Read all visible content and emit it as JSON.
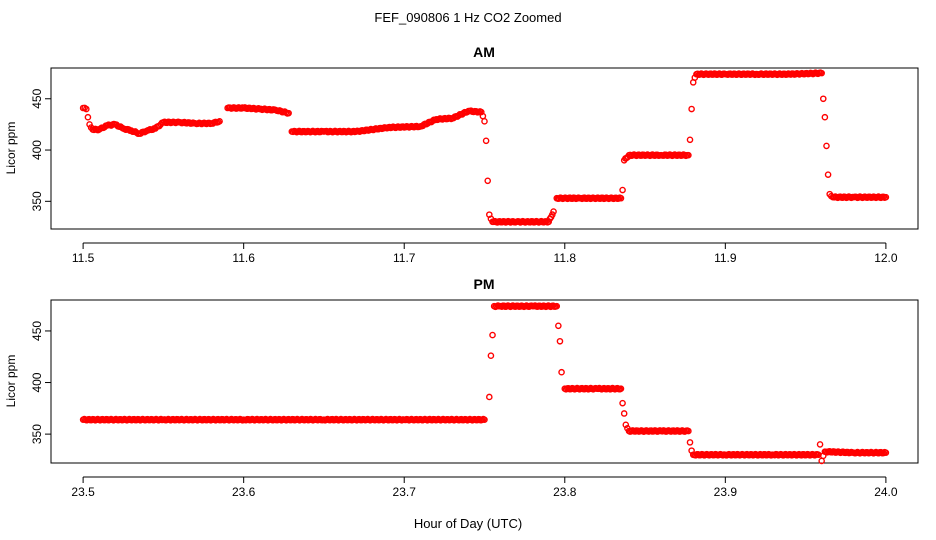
{
  "figure": {
    "title": "FEF_090806  1 Hz CO2 Zoomed",
    "xlabel": "Hour of Day (UTC)"
  },
  "colors": {
    "points": "#ff0000",
    "axes": "#000000",
    "background": "#ffffff"
  },
  "chart_data": [
    {
      "type": "scatter",
      "title": "AM",
      "ylabel": "Licor ppm",
      "xlim": [
        11.48,
        12.02
      ],
      "ylim": [
        323,
        480
      ],
      "xticks": [
        "11.5",
        "11.6",
        "11.7",
        "11.8",
        "11.9",
        "12.0"
      ],
      "xtick_values": [
        11.5,
        11.6,
        11.7,
        11.8,
        11.9,
        12.0
      ],
      "yticks": [
        "350",
        "400",
        "450"
      ],
      "ytick_values": [
        350,
        400,
        450
      ],
      "marker": "open-circle",
      "grid": false,
      "points": [
        [
          11.5,
          441
        ],
        [
          11.502,
          440
        ],
        [
          11.503,
          432
        ],
        [
          11.504,
          425
        ],
        [
          11.506,
          420
        ],
        [
          11.51,
          420
        ],
        [
          11.515,
          424
        ],
        [
          11.52,
          425
        ],
        [
          11.525,
          421
        ],
        [
          11.53,
          419
        ],
        [
          11.535,
          416
        ],
        [
          11.54,
          419
        ],
        [
          11.545,
          421
        ],
        [
          11.55,
          427
        ],
        [
          11.56,
          427
        ],
        [
          11.57,
          426
        ],
        [
          11.58,
          426
        ],
        [
          11.585,
          428
        ],
        [
          11.59,
          441
        ],
        [
          11.6,
          441
        ],
        [
          11.61,
          440
        ],
        [
          11.62,
          439
        ],
        [
          11.628,
          436
        ],
        [
          11.63,
          418
        ],
        [
          11.65,
          418
        ],
        [
          11.67,
          418
        ],
        [
          11.69,
          422
        ],
        [
          11.71,
          423
        ],
        [
          11.72,
          430
        ],
        [
          11.73,
          431
        ],
        [
          11.74,
          438
        ],
        [
          11.748,
          437
        ],
        [
          11.75,
          428
        ],
        [
          11.751,
          409
        ],
        [
          11.752,
          370
        ],
        [
          11.753,
          337
        ],
        [
          11.755,
          330
        ],
        [
          11.77,
          330
        ],
        [
          11.79,
          330
        ],
        [
          11.793,
          340
        ],
        [
          11.795,
          353
        ],
        [
          11.81,
          353
        ],
        [
          11.835,
          353
        ],
        [
          11.836,
          361
        ],
        [
          11.837,
          390
        ],
        [
          11.84,
          395
        ],
        [
          11.86,
          395
        ],
        [
          11.877,
          395
        ],
        [
          11.878,
          410
        ],
        [
          11.879,
          440
        ],
        [
          11.88,
          466
        ],
        [
          11.882,
          474
        ],
        [
          11.9,
          474
        ],
        [
          11.92,
          474
        ],
        [
          11.94,
          474
        ],
        [
          11.96,
          475
        ],
        [
          11.961,
          450
        ],
        [
          11.962,
          432
        ],
        [
          11.963,
          404
        ],
        [
          11.964,
          376
        ],
        [
          11.965,
          357
        ],
        [
          11.967,
          354
        ],
        [
          11.98,
          354
        ],
        [
          12.0,
          354
        ]
      ]
    },
    {
      "type": "scatter",
      "title": "PM",
      "ylabel": "Licor ppm",
      "xlim": [
        23.48,
        24.02
      ],
      "ylim": [
        322,
        480
      ],
      "xticks": [
        "23.5",
        "23.6",
        "23.7",
        "23.8",
        "23.9",
        "24.0"
      ],
      "xtick_values": [
        23.5,
        23.6,
        23.7,
        23.8,
        23.9,
        24.0
      ],
      "yticks": [
        "350",
        "400",
        "450"
      ],
      "ytick_values": [
        350,
        400,
        450
      ],
      "marker": "open-circle",
      "grid": false,
      "points": [
        [
          23.5,
          364
        ],
        [
          23.55,
          364
        ],
        [
          23.6,
          364
        ],
        [
          23.65,
          364
        ],
        [
          23.7,
          364
        ],
        [
          23.75,
          364
        ],
        [
          23.753,
          386
        ],
        [
          23.754,
          426
        ],
        [
          23.755,
          446
        ],
        [
          23.756,
          474
        ],
        [
          23.76,
          474
        ],
        [
          23.78,
          474
        ],
        [
          23.795,
          474
        ],
        [
          23.796,
          455
        ],
        [
          23.797,
          440
        ],
        [
          23.798,
          410
        ],
        [
          23.8,
          394
        ],
        [
          23.82,
          394
        ],
        [
          23.835,
          394
        ],
        [
          23.836,
          380
        ],
        [
          23.837,
          370
        ],
        [
          23.838,
          359
        ],
        [
          23.84,
          353
        ],
        [
          23.86,
          353
        ],
        [
          23.877,
          353
        ],
        [
          23.878,
          342
        ],
        [
          23.879,
          334
        ],
        [
          23.88,
          330
        ],
        [
          23.9,
          330
        ],
        [
          23.93,
          330
        ],
        [
          23.958,
          330
        ],
        [
          23.959,
          340
        ],
        [
          23.96,
          324
        ],
        [
          23.962,
          333
        ],
        [
          23.98,
          332
        ],
        [
          24.0,
          332
        ]
      ]
    }
  ]
}
